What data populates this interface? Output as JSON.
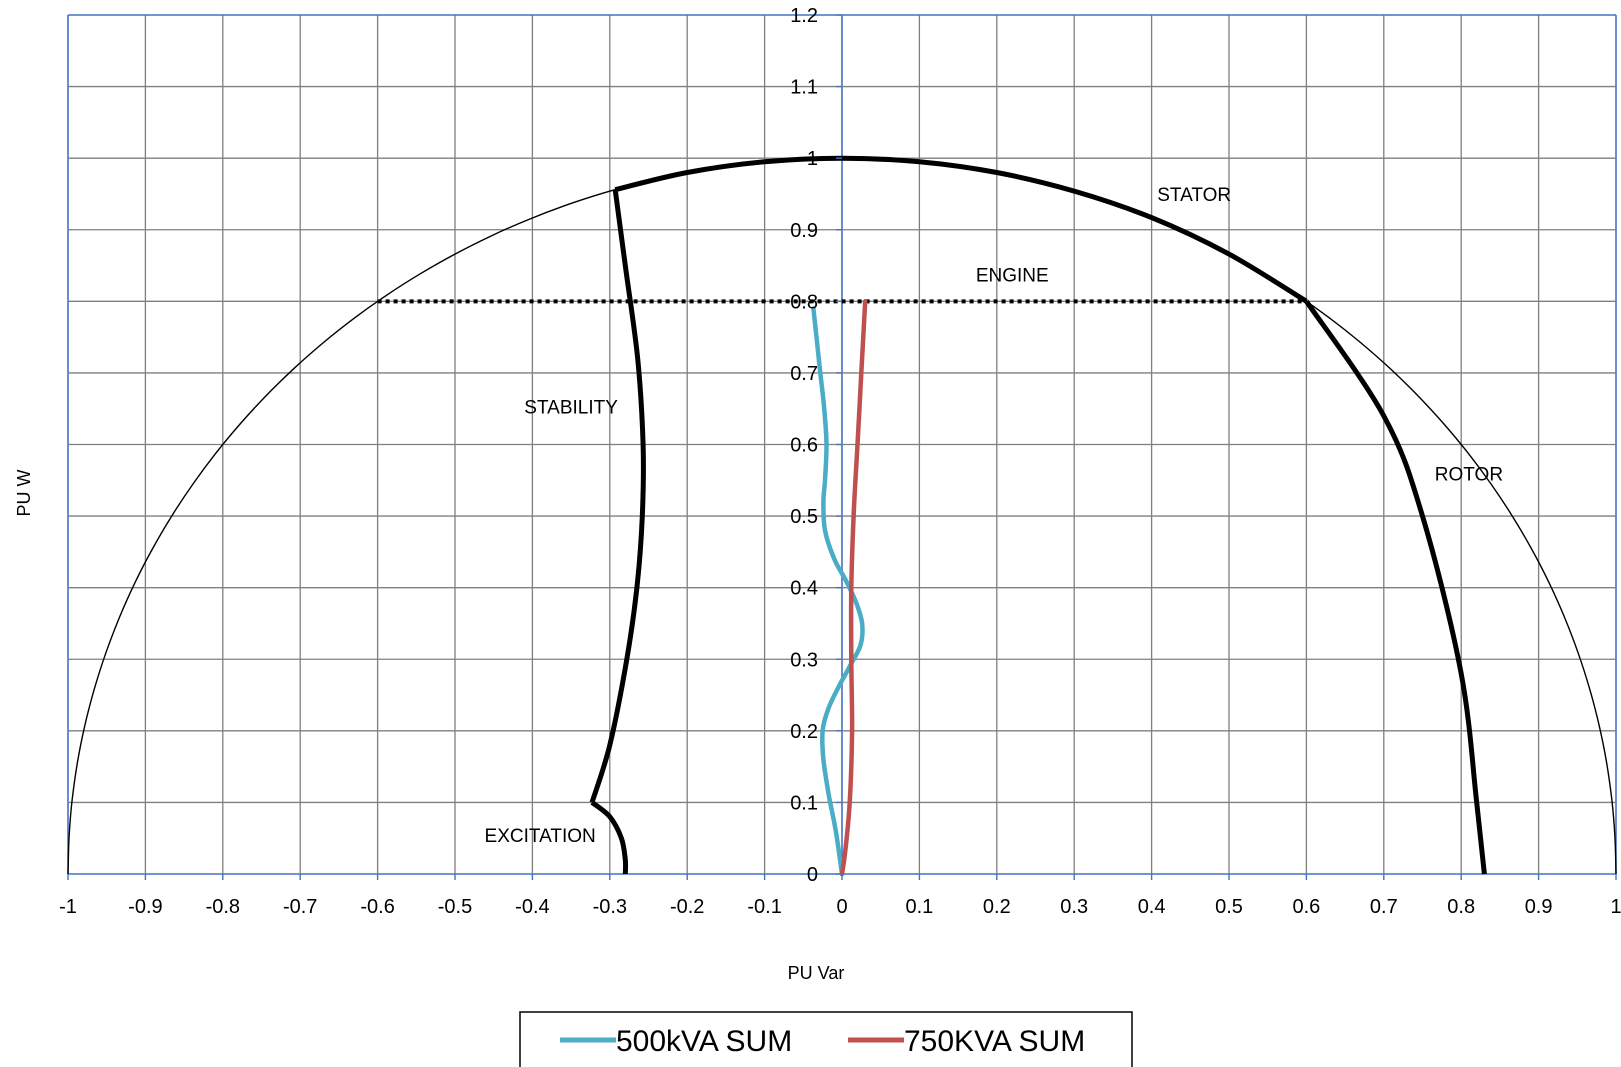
{
  "chart_data": {
    "type": "line",
    "title": "",
    "xlabel": "PU Var",
    "ylabel": "PU W",
    "xlim": [
      -1,
      1
    ],
    "ylim": [
      0,
      1.2
    ],
    "x_ticks": [
      -1,
      -0.9,
      -0.8,
      -0.7,
      -0.6,
      -0.5,
      -0.4,
      -0.3,
      -0.2,
      -0.1,
      0,
      0.1,
      0.2,
      0.3,
      0.4,
      0.5,
      0.6,
      0.7,
      0.8,
      0.9,
      1
    ],
    "x_tick_labels": [
      "-1",
      "-0.9",
      "-0.8",
      "-0.7",
      "-0.6",
      "-0.5",
      "-0.4",
      "-0.3",
      "-0.2",
      "-0.1",
      "0",
      "0.1",
      "0.2",
      "0.3",
      "0.4",
      "0.5",
      "0.6",
      "0.7",
      "0.8",
      "0.9",
      "1"
    ],
    "y_ticks": [
      0,
      0.1,
      0.2,
      0.3,
      0.4,
      0.5,
      0.6,
      0.7,
      0.8,
      0.9,
      1,
      1.1,
      1.2
    ],
    "y_tick_labels": [
      "0",
      "0.1",
      "0.2",
      "0.3",
      "0.4",
      "0.5",
      "0.6",
      "0.7",
      "0.8",
      "0.9",
      "1",
      "1.1",
      "1.2"
    ],
    "grid": true,
    "legend_position": "bottom-center",
    "series": [
      {
        "name": "500kVA SUM",
        "color": "#4bacc6",
        "points": [
          [
            -0.037,
            0.79
          ],
          [
            -0.033,
            0.75
          ],
          [
            -0.028,
            0.7
          ],
          [
            -0.023,
            0.65
          ],
          [
            -0.02,
            0.6
          ],
          [
            -0.022,
            0.55
          ],
          [
            -0.024,
            0.52
          ],
          [
            -0.022,
            0.48
          ],
          [
            -0.01,
            0.44
          ],
          [
            0.005,
            0.41
          ],
          [
            0.018,
            0.38
          ],
          [
            0.026,
            0.35
          ],
          [
            0.024,
            0.32
          ],
          [
            0.01,
            0.29
          ],
          [
            -0.005,
            0.26
          ],
          [
            -0.018,
            0.23
          ],
          [
            -0.025,
            0.2
          ],
          [
            -0.024,
            0.16
          ],
          [
            -0.017,
            0.11
          ],
          [
            -0.008,
            0.06
          ],
          [
            0.0,
            0.0
          ]
        ]
      },
      {
        "name": "750KVA SUM",
        "color": "#c0504d",
        "points": [
          [
            0.03,
            0.8
          ],
          [
            0.025,
            0.7
          ],
          [
            0.02,
            0.6
          ],
          [
            0.015,
            0.5
          ],
          [
            0.012,
            0.4
          ],
          [
            0.012,
            0.3
          ],
          [
            0.013,
            0.2
          ],
          [
            0.01,
            0.1
          ],
          [
            0.004,
            0.03
          ],
          [
            0.0,
            0.0
          ]
        ]
      }
    ],
    "limit_curves": [
      {
        "name": "STATOR",
        "color": "#000000",
        "points": [
          [
            -0.293,
            0.956
          ],
          [
            -0.2,
            0.98
          ],
          [
            -0.1,
            0.995
          ],
          [
            0.0,
            1.0
          ],
          [
            0.1,
            0.995
          ],
          [
            0.2,
            0.98
          ],
          [
            0.3,
            0.954
          ],
          [
            0.4,
            0.917
          ],
          [
            0.5,
            0.866
          ],
          [
            0.6,
            0.8
          ]
        ]
      },
      {
        "name": "ENGINE",
        "color": "#000000",
        "style": "dotted",
        "points": [
          [
            -0.6,
            0.8
          ],
          [
            0.6,
            0.8
          ]
        ]
      },
      {
        "name": "ROTOR",
        "color": "#000000",
        "points": [
          [
            0.6,
            0.8
          ],
          [
            0.7,
            0.64
          ],
          [
            0.75,
            0.5
          ],
          [
            0.8,
            0.28
          ],
          [
            0.82,
            0.1
          ],
          [
            0.83,
            0.0
          ]
        ]
      },
      {
        "name": "STABILITY",
        "color": "#000000",
        "points": [
          [
            -0.293,
            0.956
          ],
          [
            -0.28,
            0.85
          ],
          [
            -0.264,
            0.72
          ],
          [
            -0.257,
            0.6
          ],
          [
            -0.258,
            0.5
          ],
          [
            -0.265,
            0.4
          ],
          [
            -0.278,
            0.3
          ],
          [
            -0.3,
            0.18
          ],
          [
            -0.323,
            0.1
          ]
        ]
      },
      {
        "name": "EXCITATION",
        "color": "#000000",
        "points": [
          [
            -0.323,
            0.1
          ],
          [
            -0.3,
            0.08
          ],
          [
            -0.285,
            0.05
          ],
          [
            -0.28,
            0.02
          ],
          [
            -0.28,
            0.0
          ]
        ]
      },
      {
        "name": "",
        "color": "#000000",
        "thin": true,
        "shape": "unit-semicircle"
      }
    ],
    "annotations": [
      {
        "text": "STATOR",
        "x": 0.455,
        "y": 0.94
      },
      {
        "text": "ENGINE",
        "x": 0.22,
        "y": 0.828
      },
      {
        "text": "STABILITY",
        "x": -0.35,
        "y": 0.643
      },
      {
        "text": "ROTOR",
        "x": 0.81,
        "y": 0.55
      },
      {
        "text": "EXCITATION",
        "x": -0.39,
        "y": 0.045
      }
    ]
  }
}
